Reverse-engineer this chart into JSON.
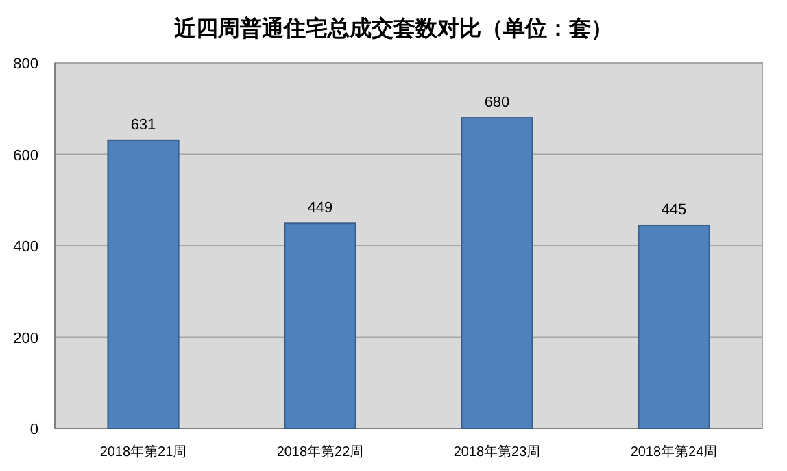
{
  "chart_data": {
    "type": "bar",
    "title": "近四周普通住宅总成交套数对比（单位：套）",
    "categories": [
      "2018年第21周",
      "2018年第22周",
      "2018年第23周",
      "2018年第24周"
    ],
    "values": [
      631,
      449,
      680,
      445
    ],
    "color": "#4f81bd",
    "ylim": [
      0,
      800
    ],
    "yticks": [
      0,
      200,
      400,
      600,
      800
    ],
    "grid": "y",
    "data_labels": true
  }
}
